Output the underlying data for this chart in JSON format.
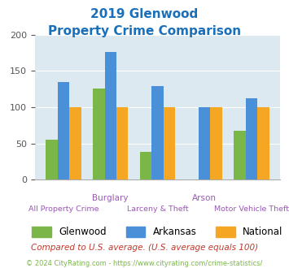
{
  "title_line1": "2019 Glenwood",
  "title_line2": "Property Crime Comparison",
  "title_color": "#1a6fba",
  "categories": [
    "All Property Crime",
    "Burglary",
    "Larceny & Theft",
    "Arson",
    "Motor Vehicle Theft"
  ],
  "glenwood_values": [
    55,
    126,
    38,
    0,
    67
  ],
  "arkansas_values": [
    135,
    176,
    129,
    100,
    112
  ],
  "national_values": [
    100,
    100,
    100,
    100,
    100
  ],
  "glenwood_color": "#7ab648",
  "arkansas_color": "#4a90d9",
  "national_color": "#f5a623",
  "ylim": [
    0,
    200
  ],
  "yticks": [
    0,
    50,
    100,
    150,
    200
  ],
  "bg_color": "#dce9f0",
  "legend_labels": [
    "Glenwood",
    "Arkansas",
    "National"
  ],
  "footnote1": "Compared to U.S. average. (U.S. average equals 100)",
  "footnote1_color": "#c0392b",
  "footnote2": "© 2024 CityRating.com - https://www.cityrating.com/crime-statistics/",
  "footnote2_color": "#7ab648",
  "label_color": "#9b59b6"
}
